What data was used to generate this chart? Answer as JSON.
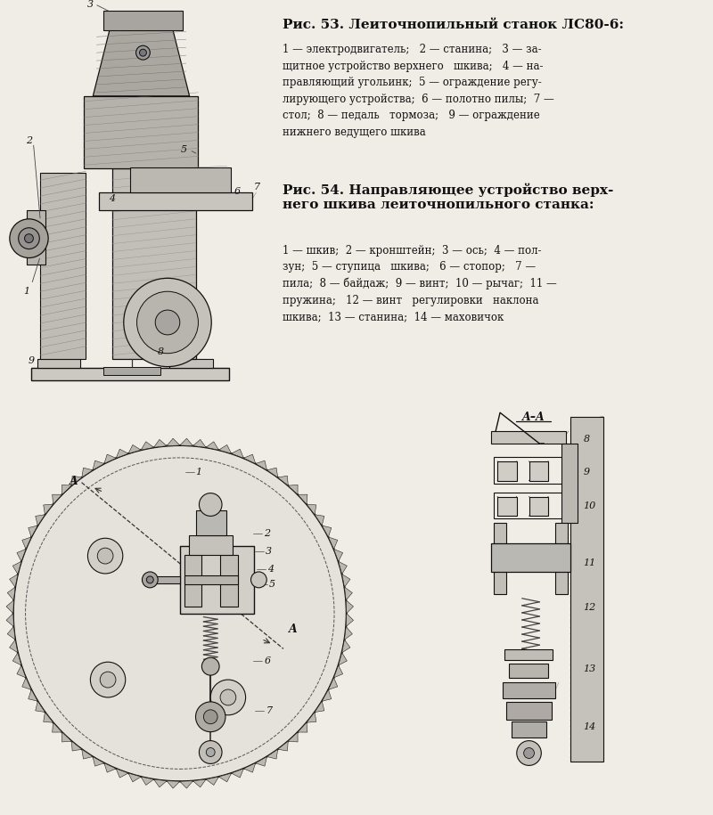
{
  "bg_color": "#f0ede6",
  "title1": "Рис. 53. Леиточнопильный станок ЛС80-6:",
  "caption1": "1 — электродвигатель;   2 — станина;   3 — за-\nщитное устройство верхнего   шкива;   4 — на-\nправляющий угольинк;  5 — ограждение регу-\nлирующего устройства;  6 — полотно пилы;  7 —\nстол;  8 — педаль   тормоза;   9 — ограждение\nнижнего ведущего шкива",
  "title2": "Рис. 54. Направляющее устройство верх-\nнего шкива леиточнопильного станка:",
  "caption2": "1 — шкив;  2 — кронштейн;  3 — ось;  4 — пол-\nзун;  5 — ступица   шкива;   6 — стопор;   7 —\nпила;  8 — байдаж;  9 — винт;  10 — рычаг;  11 —\nпружина;   12 — винт   регулировки   наклона\nшкива;  13 — станина;  14 — маховичок"
}
